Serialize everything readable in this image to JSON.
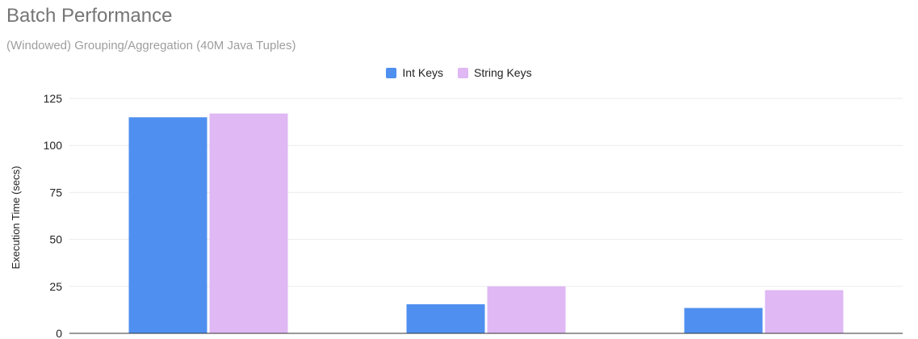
{
  "chart_data": {
    "type": "bar",
    "title": "Batch Performance",
    "subtitle": "(Windowed) Grouping/Aggregation (40M Java Tuples)",
    "ylabel": "Execution Time (secs)",
    "xlabel": "",
    "categories": [
      "",
      "",
      ""
    ],
    "series": [
      {
        "name": "Int Keys",
        "color": "#4f8ff0",
        "values": [
          115,
          15.5,
          13.5
        ]
      },
      {
        "name": "String Keys",
        "color": "#dfb8f4",
        "values": [
          117,
          25,
          23
        ]
      }
    ],
    "ylim": [
      0,
      125
    ],
    "yticks": [
      0,
      25,
      50,
      75,
      100,
      125
    ],
    "grid": true,
    "legend_position": "top-center"
  }
}
